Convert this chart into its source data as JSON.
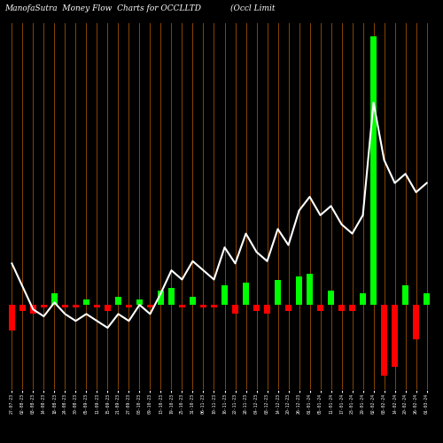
{
  "title_left": "ManofaSutra  Money Flow  Charts for OCCLLTD",
  "title_right": "(Occl Limit",
  "bg_color": "#000000",
  "line_color": "#ffffff",
  "bar_positive_color": "#00ff00",
  "bar_negative_color": "#ff0000",
  "grid_color": "#8B4500",
  "categories": [
    "27-07-23",
    "02-08-23",
    "08-08-23",
    "14-08-23",
    "18-08-23",
    "24-08-23",
    "30-08-23",
    "05-09-23",
    "11-09-23",
    "15-09-23",
    "21-09-23",
    "27-09-23",
    "03-10-23",
    "09-10-23",
    "13-10-23",
    "19-10-23",
    "25-10-23",
    "31-10-23",
    "06-11-23",
    "10-11-23",
    "16-11-23",
    "22-11-23",
    "28-11-23",
    "04-12-23",
    "08-12-23",
    "14-12-23",
    "20-12-23",
    "26-12-23",
    "01-01-24",
    "05-01-24",
    "11-01-24",
    "17-01-24",
    "23-01-24",
    "29-01-24",
    "02-02-24",
    "08-02-24",
    "14-02-24",
    "20-02-24",
    "26-02-24",
    "01-03-24"
  ],
  "bar_values": [
    -9,
    -2,
    -3,
    -1,
    4,
    -1,
    -1,
    2,
    -1,
    -2,
    3,
    -1,
    2,
    -1,
    5,
    6,
    -1,
    3,
    -1,
    -1,
    7,
    -3,
    8,
    -2,
    -3,
    9,
    -2,
    10,
    11,
    -2,
    5,
    -2,
    -2,
    4,
    95,
    -25,
    -22,
    7,
    -12,
    4
  ],
  "line_values": [
    195,
    185,
    175,
    172,
    178,
    173,
    170,
    173,
    170,
    167,
    173,
    170,
    177,
    173,
    182,
    192,
    188,
    196,
    192,
    188,
    202,
    195,
    208,
    200,
    196,
    210,
    203,
    218,
    224,
    216,
    220,
    212,
    208,
    216,
    265,
    240,
    230,
    234,
    226,
    230
  ],
  "figsize": [
    5.0,
    5.0
  ],
  "dpi": 100,
  "bar_ylim": [
    -30,
    100
  ],
  "line_ylim": [
    140,
    300
  ]
}
